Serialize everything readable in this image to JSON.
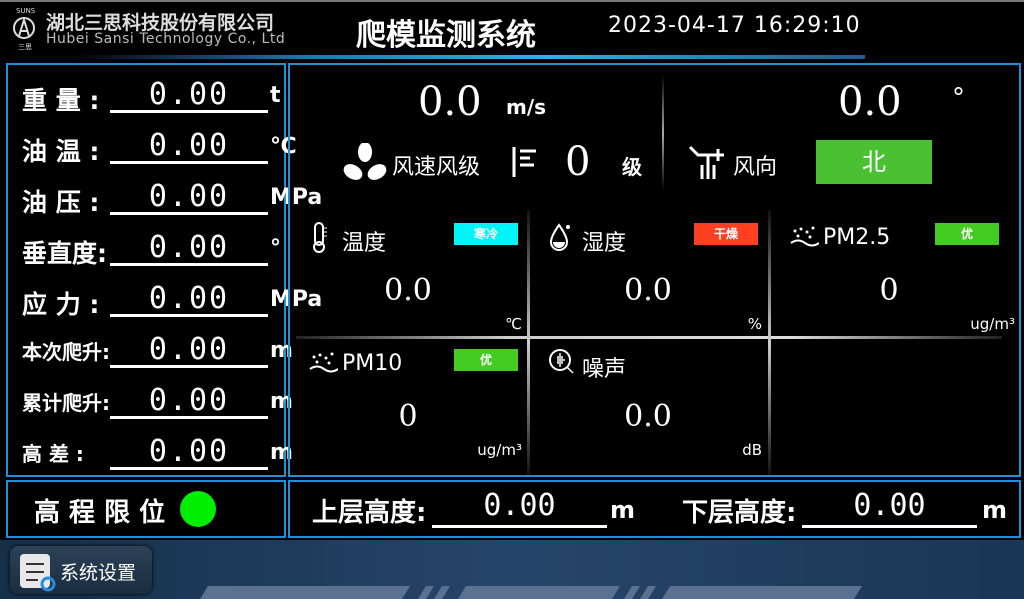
{
  "header": {
    "company_cn": "湖北三思科技股份有限公司",
    "company_en": "Hubei Sansi Technology Co., Ltd",
    "logo_text": "SUNS 三思",
    "title": "爬模监测系统",
    "datetime": "2023-04-17 16:29:10"
  },
  "left_panel": {
    "rows": [
      {
        "label": "重 量 :",
        "value": "0.00",
        "unit": "t"
      },
      {
        "label": "油 温 :",
        "value": "0.00",
        "unit": "℃"
      },
      {
        "label": "油 压 :",
        "value": "0.00",
        "unit": "MPa"
      },
      {
        "label": "垂直度:",
        "value": "0.00",
        "unit": "°"
      },
      {
        "label": "应 力 :",
        "value": "0.00",
        "unit": "MPa"
      },
      {
        "label": "本次爬升:",
        "value": "0.00",
        "unit": "m"
      },
      {
        "label": "累计爬升:",
        "value": "0.00",
        "unit": "m"
      },
      {
        "label": "高 差 :",
        "value": "0.00",
        "unit": "m"
      }
    ]
  },
  "wind": {
    "speed": "0.0",
    "speed_unit": "m/s",
    "speed_label": "风速风级",
    "level": "0",
    "level_unit": "级",
    "direction_deg": "0.0",
    "direction_unit": "°",
    "direction_label": "风向",
    "direction": "北",
    "direction_color": "#4cc033"
  },
  "env": [
    {
      "name": "温度",
      "value": "0.0",
      "unit": "℃",
      "badge": "寒冷",
      "badge_color": "#00f4f8",
      "icon": "thermometer-icon"
    },
    {
      "name": "湿度",
      "value": "0.0",
      "unit": "%",
      "badge": "干燥",
      "badge_color": "#ff4020",
      "icon": "water-drop-icon"
    },
    {
      "name": "PM2.5",
      "value": "0",
      "unit": "ug/m³",
      "badge": "优",
      "badge_color": "#44cc22",
      "icon": "dust-icon"
    },
    {
      "name": "PM10",
      "value": "0",
      "unit": "ug/m³",
      "badge": "优",
      "badge_color": "#44cc22",
      "icon": "dust-icon"
    },
    {
      "name": "噪声",
      "value": "0.0",
      "unit": "dB",
      "icon": "noise-icon"
    }
  ],
  "limit": {
    "label": "高 程 限 位",
    "status_color": "#00ee00"
  },
  "heights": {
    "upper_label": "上层高度:",
    "upper_value": "0.00",
    "upper_unit": "m",
    "lower_label": "下层高度:",
    "lower_value": "0.00",
    "lower_unit": "m"
  },
  "footer": {
    "settings_label": "系统设置"
  }
}
